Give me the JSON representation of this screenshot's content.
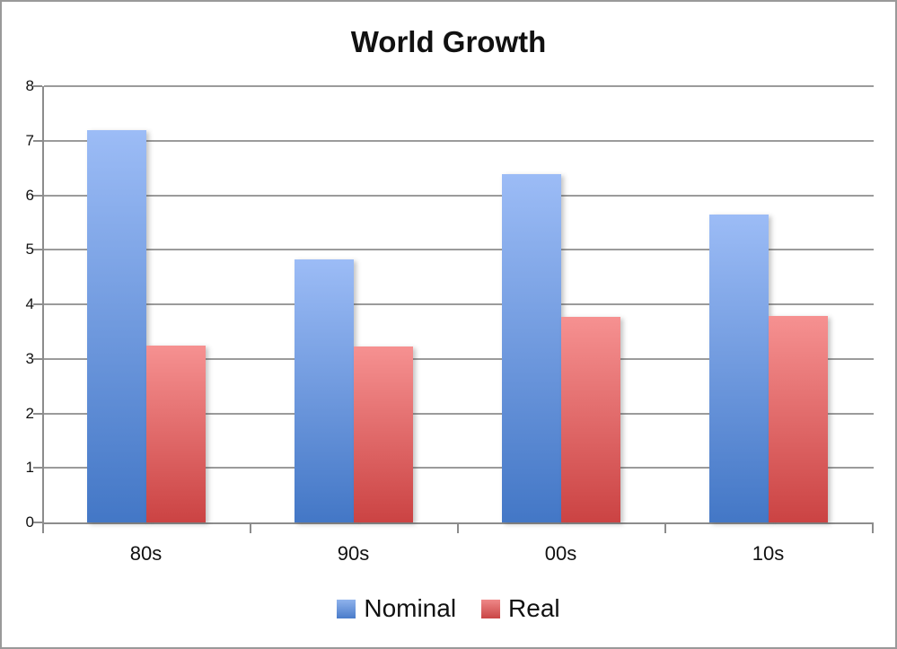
{
  "window": {
    "background_color": "#ffffff",
    "border_color": "#999999"
  },
  "chart_data": {
    "type": "bar",
    "title": "World Growth",
    "categories": [
      "80s",
      "90s",
      "00s",
      "10s"
    ],
    "series": [
      {
        "name": "Nominal",
        "values": [
          7.2,
          4.83,
          6.38,
          5.65
        ],
        "color_top": "#9cbcf6",
        "color_bottom": "#4377c6",
        "legend_color": "#5b8bd2"
      },
      {
        "name": "Real",
        "values": [
          3.25,
          3.23,
          3.77,
          3.78
        ],
        "color_top": "#f69191",
        "color_bottom": "#cb4343",
        "legend_color": "#ce4a4a"
      }
    ],
    "xlabel": "",
    "ylabel": "",
    "ylim": [
      0,
      8
    ],
    "yticks": [
      0,
      1,
      2,
      3,
      4,
      5,
      6,
      7,
      8
    ],
    "grid": "horizontal",
    "gridline_color": "#9b9b9b",
    "axis_color": "#8c8c8c",
    "legend_position": "bottom"
  }
}
